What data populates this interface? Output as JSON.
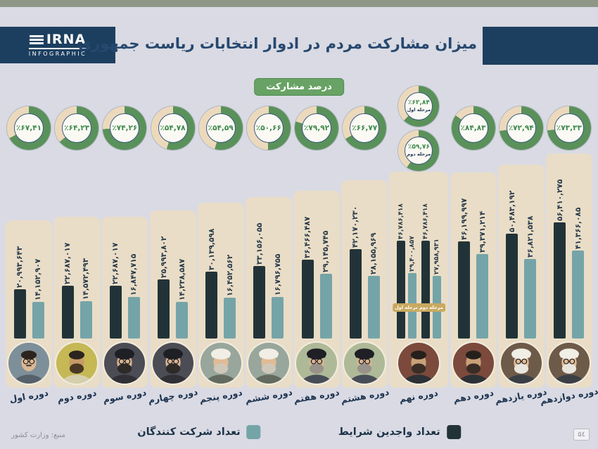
{
  "header": {
    "logo_title": "IRNA",
    "logo_subtitle": "INFOGRAPHIC",
    "title": "میزان مشارکت مردم در ادوار انتخابات ریاست جمهوری"
  },
  "turnout_section": {
    "pill_label": "درصد مشارکت"
  },
  "legend": {
    "eligible_label": "تعداد واجدین شرایط",
    "participants_label": "تعداد شرکت کنندگان"
  },
  "footer": {
    "source": "منبع: وزارت کشور",
    "page_number": "۵٤"
  },
  "colors": {
    "background": "#d9dae3",
    "header_navy": "#1d3f5f",
    "title_navy": "#27486f",
    "bar_navy": "#223338",
    "bar_teal": "#74a4a8",
    "donut_green": "#5a915a",
    "donut_cream": "#ecd9bc",
    "card_cream": "#e9ddc7",
    "pill_green": "#68a264",
    "badge_gold": "#c9a95f",
    "top_strip": "#8e9787"
  },
  "periods": [
    {
      "label": "دوره اول",
      "portrait": "banisadr-photo",
      "turnout": {
        "percent": 67.41,
        "percent_label": "٪۶۷,۴۱"
      },
      "eligible": {
        "value": 20993643,
        "label": "۲۰,۹۹۳,۶۴۳"
      },
      "participants": {
        "value": 14152907,
        "label": "۱۴,۱۵۲,۹۰۷"
      }
    },
    {
      "label": "دوره دوم",
      "portrait": "rajai-photo",
      "turnout": {
        "percent": 64.23,
        "percent_label": "٪۶۴,۲۳"
      },
      "eligible": {
        "value": 22687017,
        "label": "۲۲,۶۸۷,۰۱۷"
      },
      "participants": {
        "value": 14572493,
        "label": "۱۴,۵۷۲,۴۹۳"
      }
    },
    {
      "label": "دوره سوم",
      "portrait": "khamenei-photo",
      "turnout": {
        "percent": 74.26,
        "percent_label": "٪۷۴,۲۶"
      },
      "eligible": {
        "value": 22687017,
        "label": "۲۲,۶۸۷,۰۱۷"
      },
      "participants": {
        "value": 16847715,
        "label": "۱۶,۸۴۷,۷۱۵"
      }
    },
    {
      "label": "دوره چهارم",
      "portrait": "khamenei-photo",
      "turnout": {
        "percent": 54.78,
        "percent_label": "٪۵۴,۷۸"
      },
      "eligible": {
        "value": 25993802,
        "label": "۲۵,۹۹۳,۸۰۲"
      },
      "participants": {
        "value": 14238587,
        "label": "۱۴,۲۳۸,۵۸۷"
      }
    },
    {
      "label": "دوره پنجم",
      "portrait": "rafsanjani-photo",
      "turnout": {
        "percent": 54.59,
        "percent_label": "٪۵۴,۵۹"
      },
      "eligible": {
        "value": 30139598,
        "label": "۳۰,۱۳۹,۵۹۸"
      },
      "participants": {
        "value": 16452562,
        "label": "۱۶,۴۵۲,۵۶۲"
      }
    },
    {
      "label": "دوره ششم",
      "portrait": "rafsanjani-photo",
      "turnout": {
        "percent": 50.66,
        "percent_label": "٪۵۰,۶۶"
      },
      "eligible": {
        "value": 33156055,
        "label": "۳۳,۱۵۶,۰۵۵"
      },
      "participants": {
        "value": 16796755,
        "label": "۱۶,۷۹۶,۷۵۵"
      }
    },
    {
      "label": "دوره هفتم",
      "portrait": "khatami-photo",
      "turnout": {
        "percent": 79.92,
        "percent_label": "٪۷۹,۹۲"
      },
      "eligible": {
        "value": 36466487,
        "label": "۳۶,۴۶۶,۴۸۷"
      },
      "participants": {
        "value": 29145745,
        "label": "۲۹,۱۴۵,۷۴۵"
      }
    },
    {
      "label": "دوره هشتم",
      "portrait": "khatami-photo",
      "turnout": {
        "percent": 66.77,
        "percent_label": "٪۶۶,۷۷"
      },
      "eligible": {
        "value": 42170230,
        "label": "۴۲,۱۷۰,۲۳۰"
      },
      "participants": {
        "value": 28155969,
        "label": "۲۸,۱۵۵,۹۶۹"
      }
    },
    {
      "label": "دوره نهم",
      "portrait": "ahmadinejad-photo",
      "turnout": {
        "rounds": [
          {
            "stage": "مرحله اول",
            "percent": 62.84,
            "percent_label": "٪۶۲,۸۴"
          },
          {
            "stage": "مرحله دوم",
            "percent": 59.76,
            "percent_label": "٪۵۹,۷۶"
          }
        ]
      },
      "rounds": [
        {
          "stage": "مرحله اول",
          "eligible": {
            "value": 46786418,
            "label": "۴۶,۷۸۶,۴۱۸"
          },
          "participants": {
            "value": 29400857,
            "label": "۲۹,۴۰۰,۸۵۷"
          }
        },
        {
          "stage": "مرحله دوم",
          "eligible": {
            "value": 46786418,
            "label": "۴۶,۷۸۶,۴۱۸"
          },
          "participants": {
            "value": 27958931,
            "label": "۲۷,۹۵۸,۹۳۱"
          }
        }
      ]
    },
    {
      "label": "دوره دهم",
      "portrait": "ahmadinejad-photo",
      "turnout": {
        "percent": 84.83,
        "percent_label": "٪۸۴,۸۳"
      },
      "eligible": {
        "value": 46199997,
        "label": "۴۶,۱۹۹,۹۹۷"
      },
      "participants": {
        "value": 39371214,
        "label": "۳۹,۳۷۱,۲۱۴"
      }
    },
    {
      "label": "دوره یازدهم",
      "portrait": "rouhani-photo",
      "turnout": {
        "percent": 72.94,
        "percent_label": "٪۷۲,۹۴"
      },
      "eligible": {
        "value": 50483192,
        "label": "۵۰,۴۸۳,۱۹۲"
      },
      "participants": {
        "value": 36821538,
        "label": "۳۶,۸۲۱,۵۳۸"
      }
    },
    {
      "label": "دوره دوازدهم",
      "portrait": "rouhani-photo",
      "turnout": {
        "percent": 73.33,
        "percent_label": "٪۷۳,۳۳"
      },
      "eligible": {
        "value": 56410275,
        "label": "۵۶,۴۱۰,۲۷۵"
      },
      "participants": {
        "value": 41366085,
        "label": "۴۱,۳۶۶,۰۸۵"
      }
    }
  ],
  "chart_data": {
    "type": "bar",
    "title": "میزان مشارکت مردم در ادوار انتخابات ریاست جمهوری",
    "categories": [
      "دوره اول",
      "دوره دوم",
      "دوره سوم",
      "دوره چهارم",
      "دوره پنجم",
      "دوره ششم",
      "دوره هفتم",
      "دوره هشتم",
      "دوره نهم",
      "دوره دهم",
      "دوره یازدهم",
      "دوره دوازدهم"
    ],
    "series": [
      {
        "name": "تعداد واجدین شرایط",
        "color": "#223338",
        "values": [
          20993643,
          22687017,
          22687017,
          25993802,
          30139598,
          33156055,
          36466487,
          42170230,
          46786418,
          46199997,
          50483192,
          56410275
        ]
      },
      {
        "name": "تعداد شرکت کنندگان",
        "color": "#74a4a8",
        "values": [
          14152907,
          14572493,
          16847715,
          14238587,
          16452562,
          16796755,
          29145745,
          28155969,
          29400857,
          39371214,
          36821538,
          41366085
        ]
      }
    ],
    "turnout_percent": [
      67.41,
      64.23,
      74.26,
      54.78,
      54.59,
      50.66,
      79.92,
      66.77,
      62.84,
      84.83,
      72.94,
      73.33
    ],
    "ninth_period_second_round": {
      "stage": "مرحله دوم",
      "turnout_percent": 59.76,
      "eligible": 46786418,
      "participants": 27958931
    },
    "legend_position": "bottom",
    "grid": false
  }
}
